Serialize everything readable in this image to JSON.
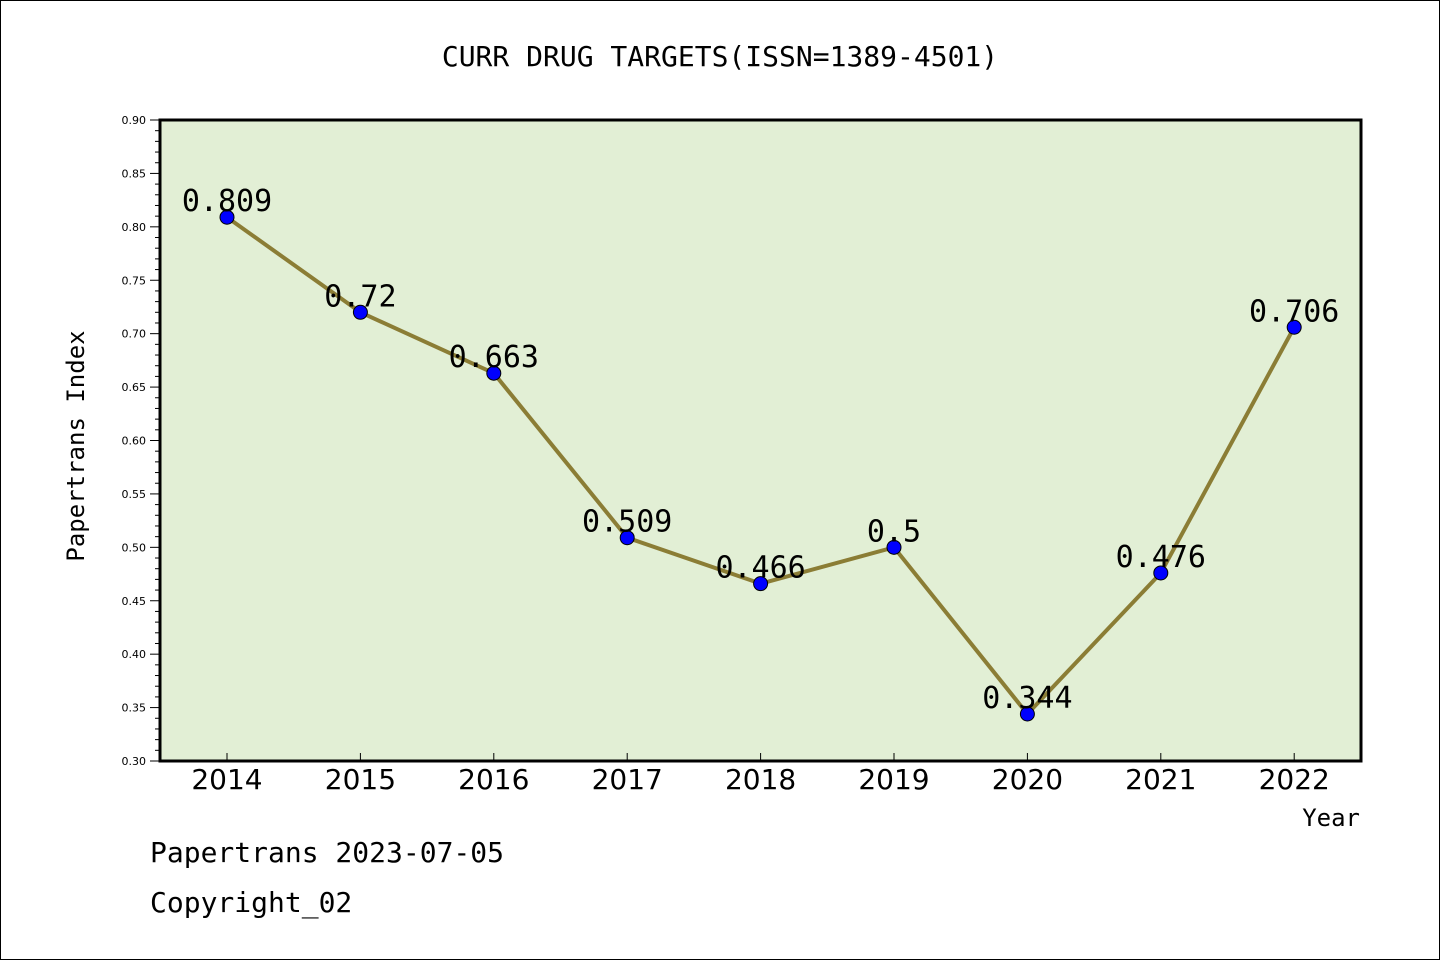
{
  "chart_data": {
    "type": "line",
    "title": "CURR DRUG TARGETS(ISSN=1389-4501)",
    "xlabel": "Year",
    "ylabel": "Papertrans Index",
    "categories": [
      "2014",
      "2015",
      "2016",
      "2017",
      "2018",
      "2019",
      "2020",
      "2021",
      "2022"
    ],
    "values": [
      0.809,
      0.72,
      0.663,
      0.509,
      0.466,
      0.5,
      0.344,
      0.476,
      0.706
    ],
    "value_labels": [
      "0.809",
      "0.72",
      "0.663",
      "0.509",
      "0.466",
      "0.5",
      "0.344",
      "0.476",
      "0.706"
    ],
    "ylim": [
      0.3,
      0.9
    ],
    "yticks": [
      "0.30",
      "0.35",
      "0.40",
      "0.45",
      "0.50",
      "0.55",
      "0.60",
      "0.65",
      "0.70",
      "0.75",
      "0.80",
      "0.85",
      "0.90"
    ],
    "grid": false,
    "legend": "none",
    "colors": {
      "plot_background": "#e2efd5",
      "line": "#8b7d35",
      "marker": "#0000ff",
      "frame": "#000000"
    }
  },
  "footer": {
    "line1": "Papertrans 2023-07-05",
    "line2": "Copyright_02"
  }
}
